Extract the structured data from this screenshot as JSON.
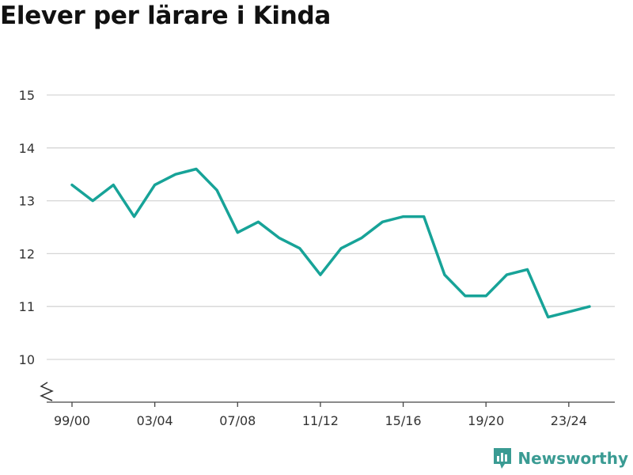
{
  "title": "Elever per lärare i Kinda",
  "brand": {
    "name": "Newsworthy",
    "icon": "bar-chart-logo-icon",
    "color": "#3a9b93"
  },
  "chart_data": {
    "type": "line",
    "title": "Elever per lärare i Kinda",
    "xlabel": "",
    "ylabel": "",
    "ylim": [
      10,
      15
    ],
    "yticks": [
      10,
      11,
      12,
      13,
      14,
      15
    ],
    "y_axis_break": true,
    "grid": true,
    "line_color": "#17a398",
    "categories": [
      "99/00",
      "00/01",
      "01/02",
      "02/03",
      "03/04",
      "04/05",
      "05/06",
      "06/07",
      "07/08",
      "08/09",
      "09/10",
      "10/11",
      "11/12",
      "12/13",
      "13/14",
      "14/15",
      "15/16",
      "16/17",
      "17/18",
      "18/19",
      "19/20",
      "20/21",
      "21/22",
      "22/23",
      "23/24",
      "24/25"
    ],
    "tick_labels": [
      "99/00",
      "03/04",
      "07/08",
      "11/12",
      "15/16",
      "19/20",
      "23/24"
    ],
    "series": [
      {
        "values": [
          13.3,
          13.0,
          13.3,
          12.7,
          13.3,
          13.5,
          13.6,
          13.2,
          12.4,
          12.6,
          12.3,
          12.1,
          11.6,
          12.1,
          12.3,
          12.6,
          12.7,
          12.7,
          11.6,
          11.2,
          11.2,
          11.6,
          11.7,
          10.8,
          10.9,
          11.0
        ]
      }
    ]
  }
}
